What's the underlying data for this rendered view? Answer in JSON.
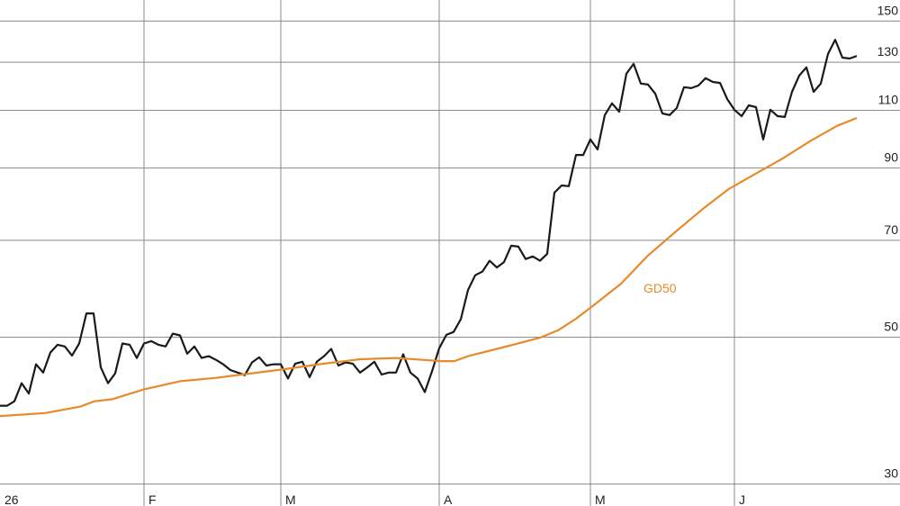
{
  "chart_data": {
    "type": "line",
    "log_scale": true,
    "grid": true,
    "annotation": "GD50",
    "xlim": [
      0,
      125
    ],
    "xticks": [
      {
        "value": 0,
        "label": "26"
      },
      {
        "value": 20,
        "label": "F"
      },
      {
        "value": 39,
        "label": "M"
      },
      {
        "value": 61,
        "label": "A"
      },
      {
        "value": 82,
        "label": "M"
      },
      {
        "value": 102,
        "label": "J"
      }
    ],
    "ylim": [
      27.8,
      161.4
    ],
    "yticks": [
      30,
      50,
      70,
      90,
      110,
      130,
      150
    ],
    "x": [
      0,
      1,
      2,
      3,
      4,
      5,
      6,
      7,
      8,
      9,
      10,
      11,
      12,
      13,
      14,
      15,
      16,
      17,
      18,
      19,
      20,
      21,
      22,
      23,
      24,
      25,
      26,
      27,
      28,
      29,
      30,
      31,
      32,
      33,
      34,
      35,
      36,
      37,
      38,
      39,
      40,
      41,
      42,
      43,
      44,
      45,
      46,
      47,
      48,
      49,
      50,
      51,
      52,
      53,
      54,
      55,
      56,
      57,
      58,
      59,
      60,
      61,
      62,
      63,
      64,
      65,
      66,
      67,
      68,
      69,
      70,
      71,
      72,
      73,
      74,
      75,
      76,
      77,
      78,
      79,
      80,
      81,
      82,
      83,
      84,
      85,
      86,
      87,
      88,
      89,
      90,
      91,
      92,
      93,
      94,
      95,
      96,
      97,
      98,
      99,
      100,
      101,
      102,
      103,
      104,
      105,
      106,
      107,
      108,
      109,
      110,
      111,
      112,
      113,
      114,
      115,
      116,
      117,
      118,
      119
    ],
    "series": [
      {
        "color": "#1a1a1a",
        "values": [
          39.4,
          39.4,
          40.0,
          42.6,
          41.1,
          45.5,
          44.2,
          47.4,
          48.7,
          48.4,
          46.9,
          48.9,
          54.3,
          54.3,
          45.0,
          42.6,
          44.1,
          48.9,
          48.7,
          46.5,
          48.9,
          49.3,
          48.7,
          48.4,
          50.6,
          50.3,
          47.2,
          48.4,
          46.5,
          46.8,
          46.2,
          45.5,
          44.6,
          44.2,
          43.8,
          45.8,
          46.6,
          45.3,
          45.5,
          45.5,
          43.3,
          45.6,
          45.9,
          43.5,
          45.9,
          46.8,
          48.0,
          45.3,
          45.8,
          45.6,
          44.2,
          45.0,
          45.9,
          43.9,
          44.2,
          44.2,
          47.1,
          44.2,
          43.3,
          41.3,
          44.4,
          48.1,
          50.4,
          50.9,
          53.2,
          58.9,
          62.0,
          62.8,
          65.2,
          63.7,
          64.9,
          68.7,
          68.5,
          65.6,
          66.2,
          65.2,
          66.8,
          82.6,
          84.7,
          84.5,
          94.2,
          94.2,
          99.4,
          96.0,
          108.2,
          112.7,
          109.5,
          124.9,
          129.3,
          120.7,
          120.3,
          116.6,
          108.8,
          108.2,
          110.9,
          119.2,
          118.8,
          119.9,
          123.0,
          121.4,
          121.0,
          114.4,
          110.2,
          107.8,
          111.9,
          111.2,
          99.4,
          110.2,
          107.8,
          107.5,
          117.3,
          124.1,
          127.7,
          117.3,
          120.7,
          133.8,
          140.6,
          132.1,
          131.7,
          132.9
        ]
      },
      {
        "name": "GD50",
        "color": "#e8892b",
        "x": [
          0,
          6.25,
          11.25,
          13.1,
          15.6,
          20,
          25,
          30,
          35,
          40,
          45,
          50,
          55,
          58.75,
          61.25,
          63.1,
          65,
          70,
          75,
          77.5,
          80,
          82.5,
          86.25,
          90,
          93.75,
          97.5,
          101.25,
          105,
          108.75,
          112.5,
          116.25,
          119
        ],
        "values": [
          38.0,
          38.4,
          39.3,
          40.0,
          40.3,
          41.7,
          42.9,
          43.4,
          44.1,
          44.8,
          45.6,
          46.3,
          46.5,
          46.2,
          46.0,
          46.0,
          46.8,
          48.3,
          49.9,
          51.2,
          53.3,
          55.9,
          60.2,
          66.4,
          72.0,
          77.9,
          83.7,
          88.3,
          93.1,
          98.8,
          104.2,
          107.1
        ]
      }
    ]
  }
}
